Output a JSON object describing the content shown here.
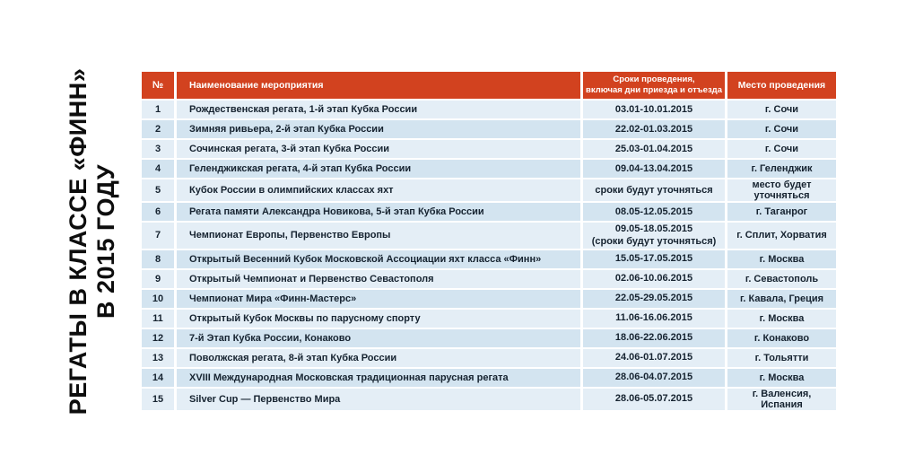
{
  "title": {
    "line1": "РЕГАТЫ В КЛАССЕ «ФИНН»",
    "line2": "В 2015 ГОДУ"
  },
  "colors": {
    "header_bg": "#d2421f",
    "header_text": "#ffffff",
    "row_odd_bg": "#e4eef6",
    "row_even_bg": "#d3e4f0",
    "cell_text": "#162330"
  },
  "table": {
    "headers": {
      "num": "№",
      "name": "Наименование мероприятия",
      "dates": "Сроки проведения,\nвключая дни приезда и отъезда",
      "place": "Место проведения"
    },
    "rows": [
      {
        "num": "1",
        "name": "Рождественская регата, 1-й этап Кубка России",
        "dates": "03.01-10.01.2015",
        "place": "г. Сочи"
      },
      {
        "num": "2",
        "name": "Зимняя ривьера, 2-й этап Кубка России",
        "dates": "22.02-01.03.2015",
        "place": "г. Сочи"
      },
      {
        "num": "3",
        "name": "Сочинская регата, 3-й этап Кубка России",
        "dates": "25.03-01.04.2015",
        "place": "г. Сочи"
      },
      {
        "num": "4",
        "name": "Геленджикская регата, 4-й этап Кубка России",
        "dates": "09.04-13.04.2015",
        "place": "г. Геленджик"
      },
      {
        "num": "5",
        "name": "Кубок России в олимпийских классах яхт",
        "dates": "сроки будут уточняться",
        "place": "место будет уточняться"
      },
      {
        "num": "6",
        "name": "Регата памяти Александра Новикова, 5-й этап Кубка России",
        "dates": "08.05-12.05.2015",
        "place": "г. Таганрог"
      },
      {
        "num": "7",
        "name": "Чемпионат Европы, Первенство Европы",
        "dates": "09.05-18.05.2015\n(сроки будут уточняться)",
        "place": "г. Сплит, Хорватия"
      },
      {
        "num": "8",
        "name": "Открытый Весенний Кубок Московской Ассоциации яхт класса «Финн»",
        "dates": "15.05-17.05.2015",
        "place": "г. Москва"
      },
      {
        "num": "9",
        "name": "Открытый Чемпионат и Первенство Севастополя",
        "dates": "02.06-10.06.2015",
        "place": "г. Севастополь"
      },
      {
        "num": "10",
        "name": "Чемпионат Мира «Финн-Мастерс»",
        "dates": "22.05-29.05.2015",
        "place": "г. Кавала, Греция"
      },
      {
        "num": "11",
        "name": "Открытый Кубок Москвы по парусному спорту",
        "dates": "11.06-16.06.2015",
        "place": "г. Москва"
      },
      {
        "num": "12",
        "name": "7-й Этап Кубка России, Конаково",
        "dates": "18.06-22.06.2015",
        "place": "г. Конаково"
      },
      {
        "num": "13",
        "name": "Поволжская регата, 8-й этап Кубка России",
        "dates": "24.06-01.07.2015",
        "place": "г. Тольятти"
      },
      {
        "num": "14",
        "name": "XVIII Международная Московская традиционная парусная регата",
        "dates": "28.06-04.07.2015",
        "place": "г. Москва"
      },
      {
        "num": "15",
        "name": "Silver Cup — Первенство Мира",
        "dates": "28.06-05.07.2015",
        "place": "г. Валенсия, Испания"
      }
    ]
  }
}
